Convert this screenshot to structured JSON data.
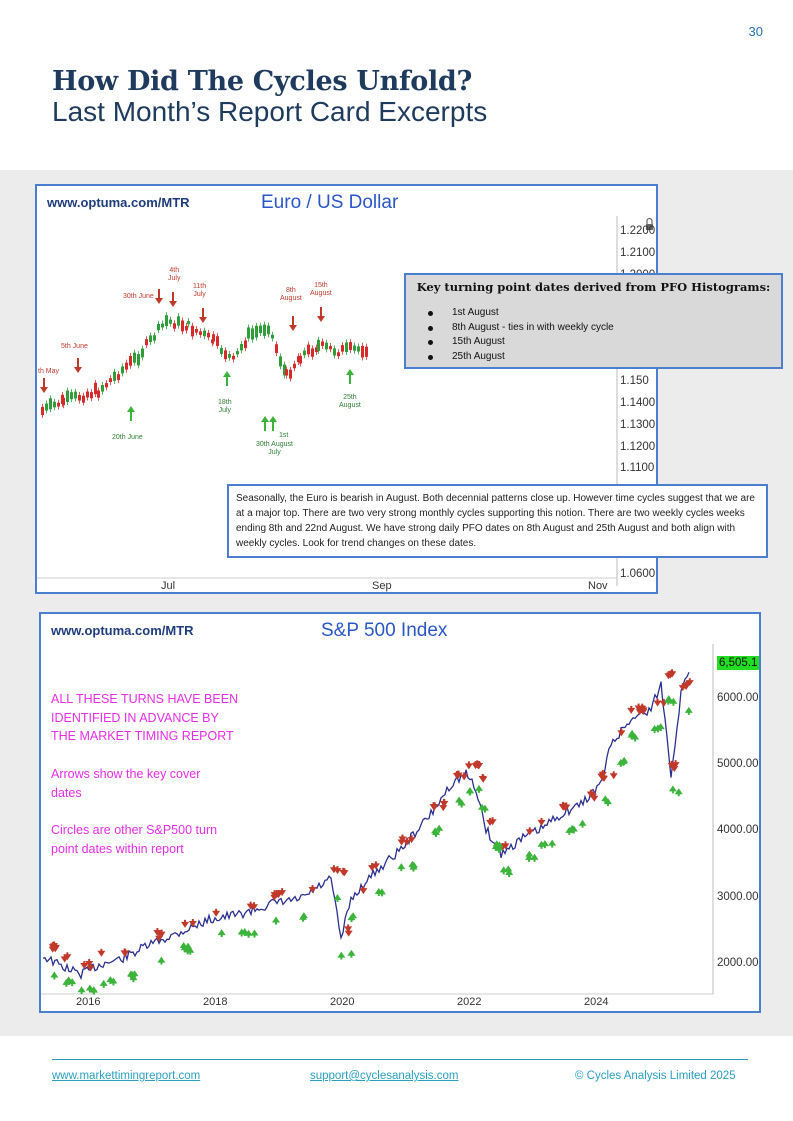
{
  "page": {
    "number": "30"
  },
  "header": {
    "title": "How Did The Cycles Unfold?",
    "subtitle": "Last Month’s Report Card Excerpts"
  },
  "euro_chart": {
    "url": "www.optuma.com/MTR",
    "title": "Euro / US Dollar",
    "y_labels": [
      "1.2200",
      "1.2100",
      "1.2000",
      "1.150",
      "1.1400",
      "1.1300",
      "1.1200",
      "1.1100",
      "1.0600"
    ],
    "x_labels": [
      "Jul",
      "Sep",
      "Nov"
    ],
    "red_annotations": [
      {
        "text": "th May"
      },
      {
        "text": "5th June"
      },
      {
        "text": "30th June"
      },
      {
        "text": "4th\nJuly"
      },
      {
        "text": "11th\nJuly"
      },
      {
        "text": "8th\nAugust"
      },
      {
        "text": "15th\nAugust"
      }
    ],
    "green_annotations": [
      {
        "text": "20th June"
      },
      {
        "text": "18th\nJuly"
      },
      {
        "text": "1st"
      },
      {
        "text": "30th August\nJuly"
      },
      {
        "text": "25th\nAugust"
      }
    ],
    "pfo_box": {
      "title": "Key turning point dates derived from PFO Histograms:",
      "items": [
        "1st August",
        "8th August - ties in with weekly cycle",
        "15th August",
        "25th August"
      ]
    },
    "seasonal_text": "Seasonally, the Euro is bearish in August. Both decennial patterns close up. However time cycles suggest that we are at a major top. There are two very strong monthly cycles supporting this notion. There are two weekly cycles weeks ending 8th and 22nd August. We have strong daily PFO dates on 8th August and 25th August and both align with weekly cycles. Look for trend changes on these dates."
  },
  "spx_chart": {
    "url": "www.optuma.com/MTR",
    "title": "S&P 500 Index",
    "last_value": "6,505.1",
    "y_labels": [
      "6000.00",
      "5000.00",
      "4000.00",
      "3000.00",
      "2000.00"
    ],
    "x_labels": [
      "2016",
      "2018",
      "2020",
      "2022",
      "2024"
    ],
    "notes": [
      "ALL THESE TURNS HAVE BEEN\nIDENTIFIED IN ADVANCE BY\nTHE MARKET TIMING REPORT",
      "Arrows show the key cover\ndates",
      "Circles are other S&P500 turn\npoint dates within report"
    ],
    "colors": {
      "line": "#2b2f8f",
      "up_arrow": "#3cb43c",
      "down_arrow": "#c0392b",
      "last_value_bg": "#22dd22"
    }
  },
  "footer": {
    "website": "www.markettimingreport.com",
    "email": "support@cyclesanalysis.com",
    "copyright": "© Cycles Analysis Limited 2025"
  }
}
